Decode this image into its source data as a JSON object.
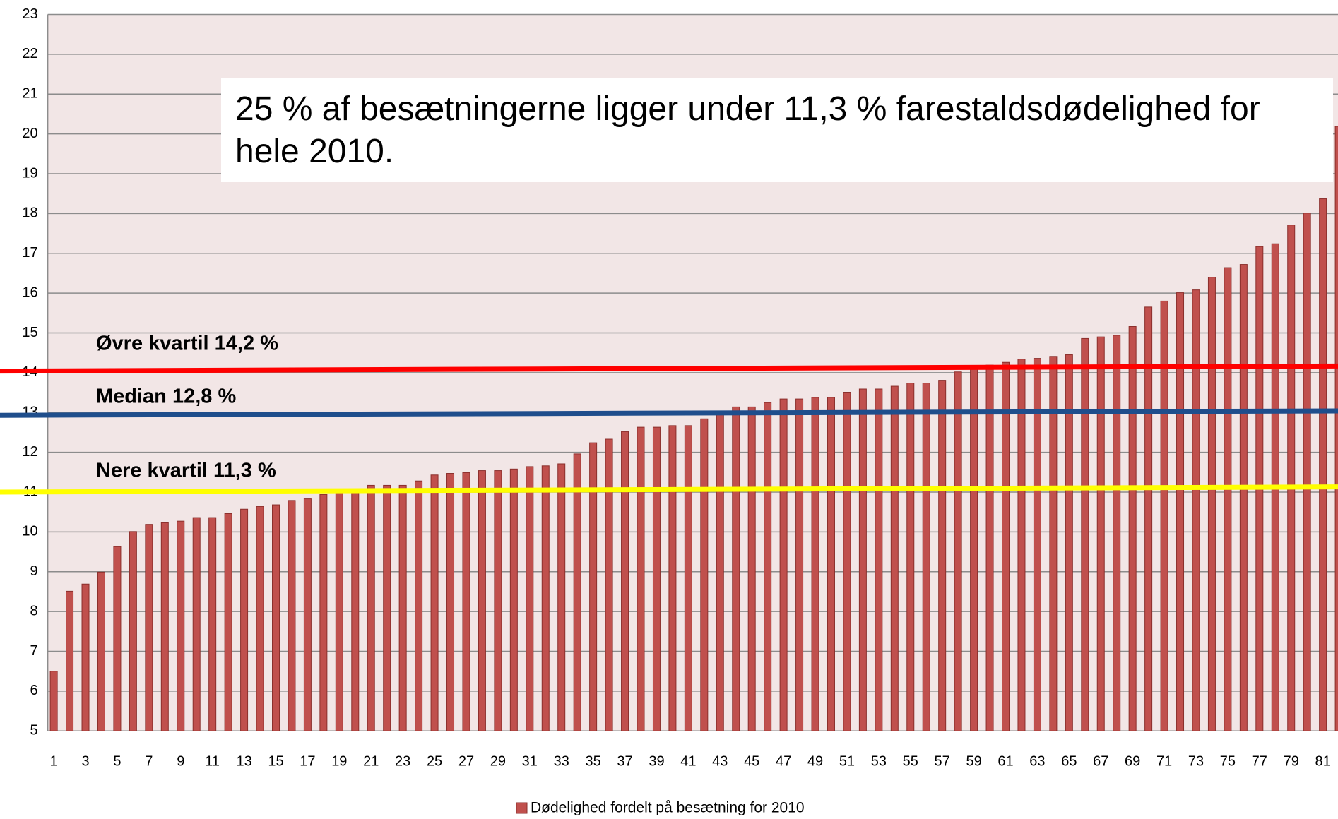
{
  "chart_data": {
    "type": "bar",
    "categories": [
      "1",
      null,
      "3",
      null,
      "5",
      null,
      "7",
      null,
      "9",
      null,
      "11",
      null,
      "13",
      null,
      "15",
      null,
      "17",
      null,
      "19",
      null,
      "21",
      null,
      "23",
      null,
      "25",
      null,
      "27",
      null,
      "29",
      null,
      "31",
      null,
      "33",
      null,
      "35",
      null,
      "37",
      null,
      "39",
      null,
      "41",
      null,
      "43",
      null,
      "45",
      null,
      "47",
      null,
      "49",
      null,
      "51",
      null,
      "53",
      null,
      "55",
      null,
      "57",
      null,
      "59",
      null,
      "61",
      null,
      "63",
      null,
      "65",
      null,
      "67",
      null,
      "69",
      null,
      "71",
      null,
      "73",
      null,
      "75",
      null,
      "77",
      null,
      "79",
      null,
      "81",
      null
    ],
    "series": [
      {
        "name": "Dødelighed fordelt på besætning for 2010",
        "color": "#c0504d",
        "values": [
          6.5,
          8.51,
          8.69,
          8.99,
          9.63,
          10.01,
          10.19,
          10.23,
          10.27,
          10.36,
          10.36,
          10.46,
          10.57,
          10.64,
          10.68,
          10.79,
          10.83,
          10.94,
          11.06,
          11.06,
          11.17,
          11.17,
          11.17,
          11.28,
          11.43,
          11.47,
          11.49,
          11.54,
          11.54,
          11.58,
          11.64,
          11.66,
          11.71,
          11.96,
          12.24,
          12.33,
          12.52,
          12.63,
          12.63,
          12.67,
          12.67,
          12.84,
          12.99,
          13.14,
          13.14,
          13.25,
          13.34,
          13.34,
          13.38,
          13.38,
          13.51,
          13.59,
          13.59,
          13.66,
          13.74,
          13.74,
          13.81,
          14.02,
          14.15,
          14.19,
          14.26,
          14.34,
          14.36,
          14.41,
          14.45,
          14.86,
          14.9,
          14.94,
          15.16,
          15.65,
          15.8,
          16.01,
          16.08,
          16.4,
          16.64,
          16.72,
          17.17,
          17.24,
          17.71,
          18.01,
          18.37,
          20.19
        ]
      }
    ],
    "ylim": [
      5,
      23
    ],
    "yticks": [
      5,
      6,
      7,
      8,
      9,
      10,
      11,
      12,
      13,
      14,
      15,
      16,
      17,
      18,
      19,
      20,
      21,
      22,
      23
    ],
    "grid": true,
    "reference_lines": [
      {
        "label": "Øvre kvartil 14,2 %",
        "color": "#ff0000",
        "values": [
          14.04,
          14.17
        ]
      },
      {
        "label": "Median 12,8 %",
        "color": "#1f4e8c",
        "values": [
          12.93,
          13.04
        ]
      },
      {
        "label": "Nere kvartil 11,3 %",
        "color": "#ffff00",
        "values": [
          11.0,
          11.13
        ]
      }
    ],
    "annotation": "25 % af besætningerne ligger under 11,3 % farestaldsdødelighed for hele 2010.",
    "legend": "bottom"
  }
}
